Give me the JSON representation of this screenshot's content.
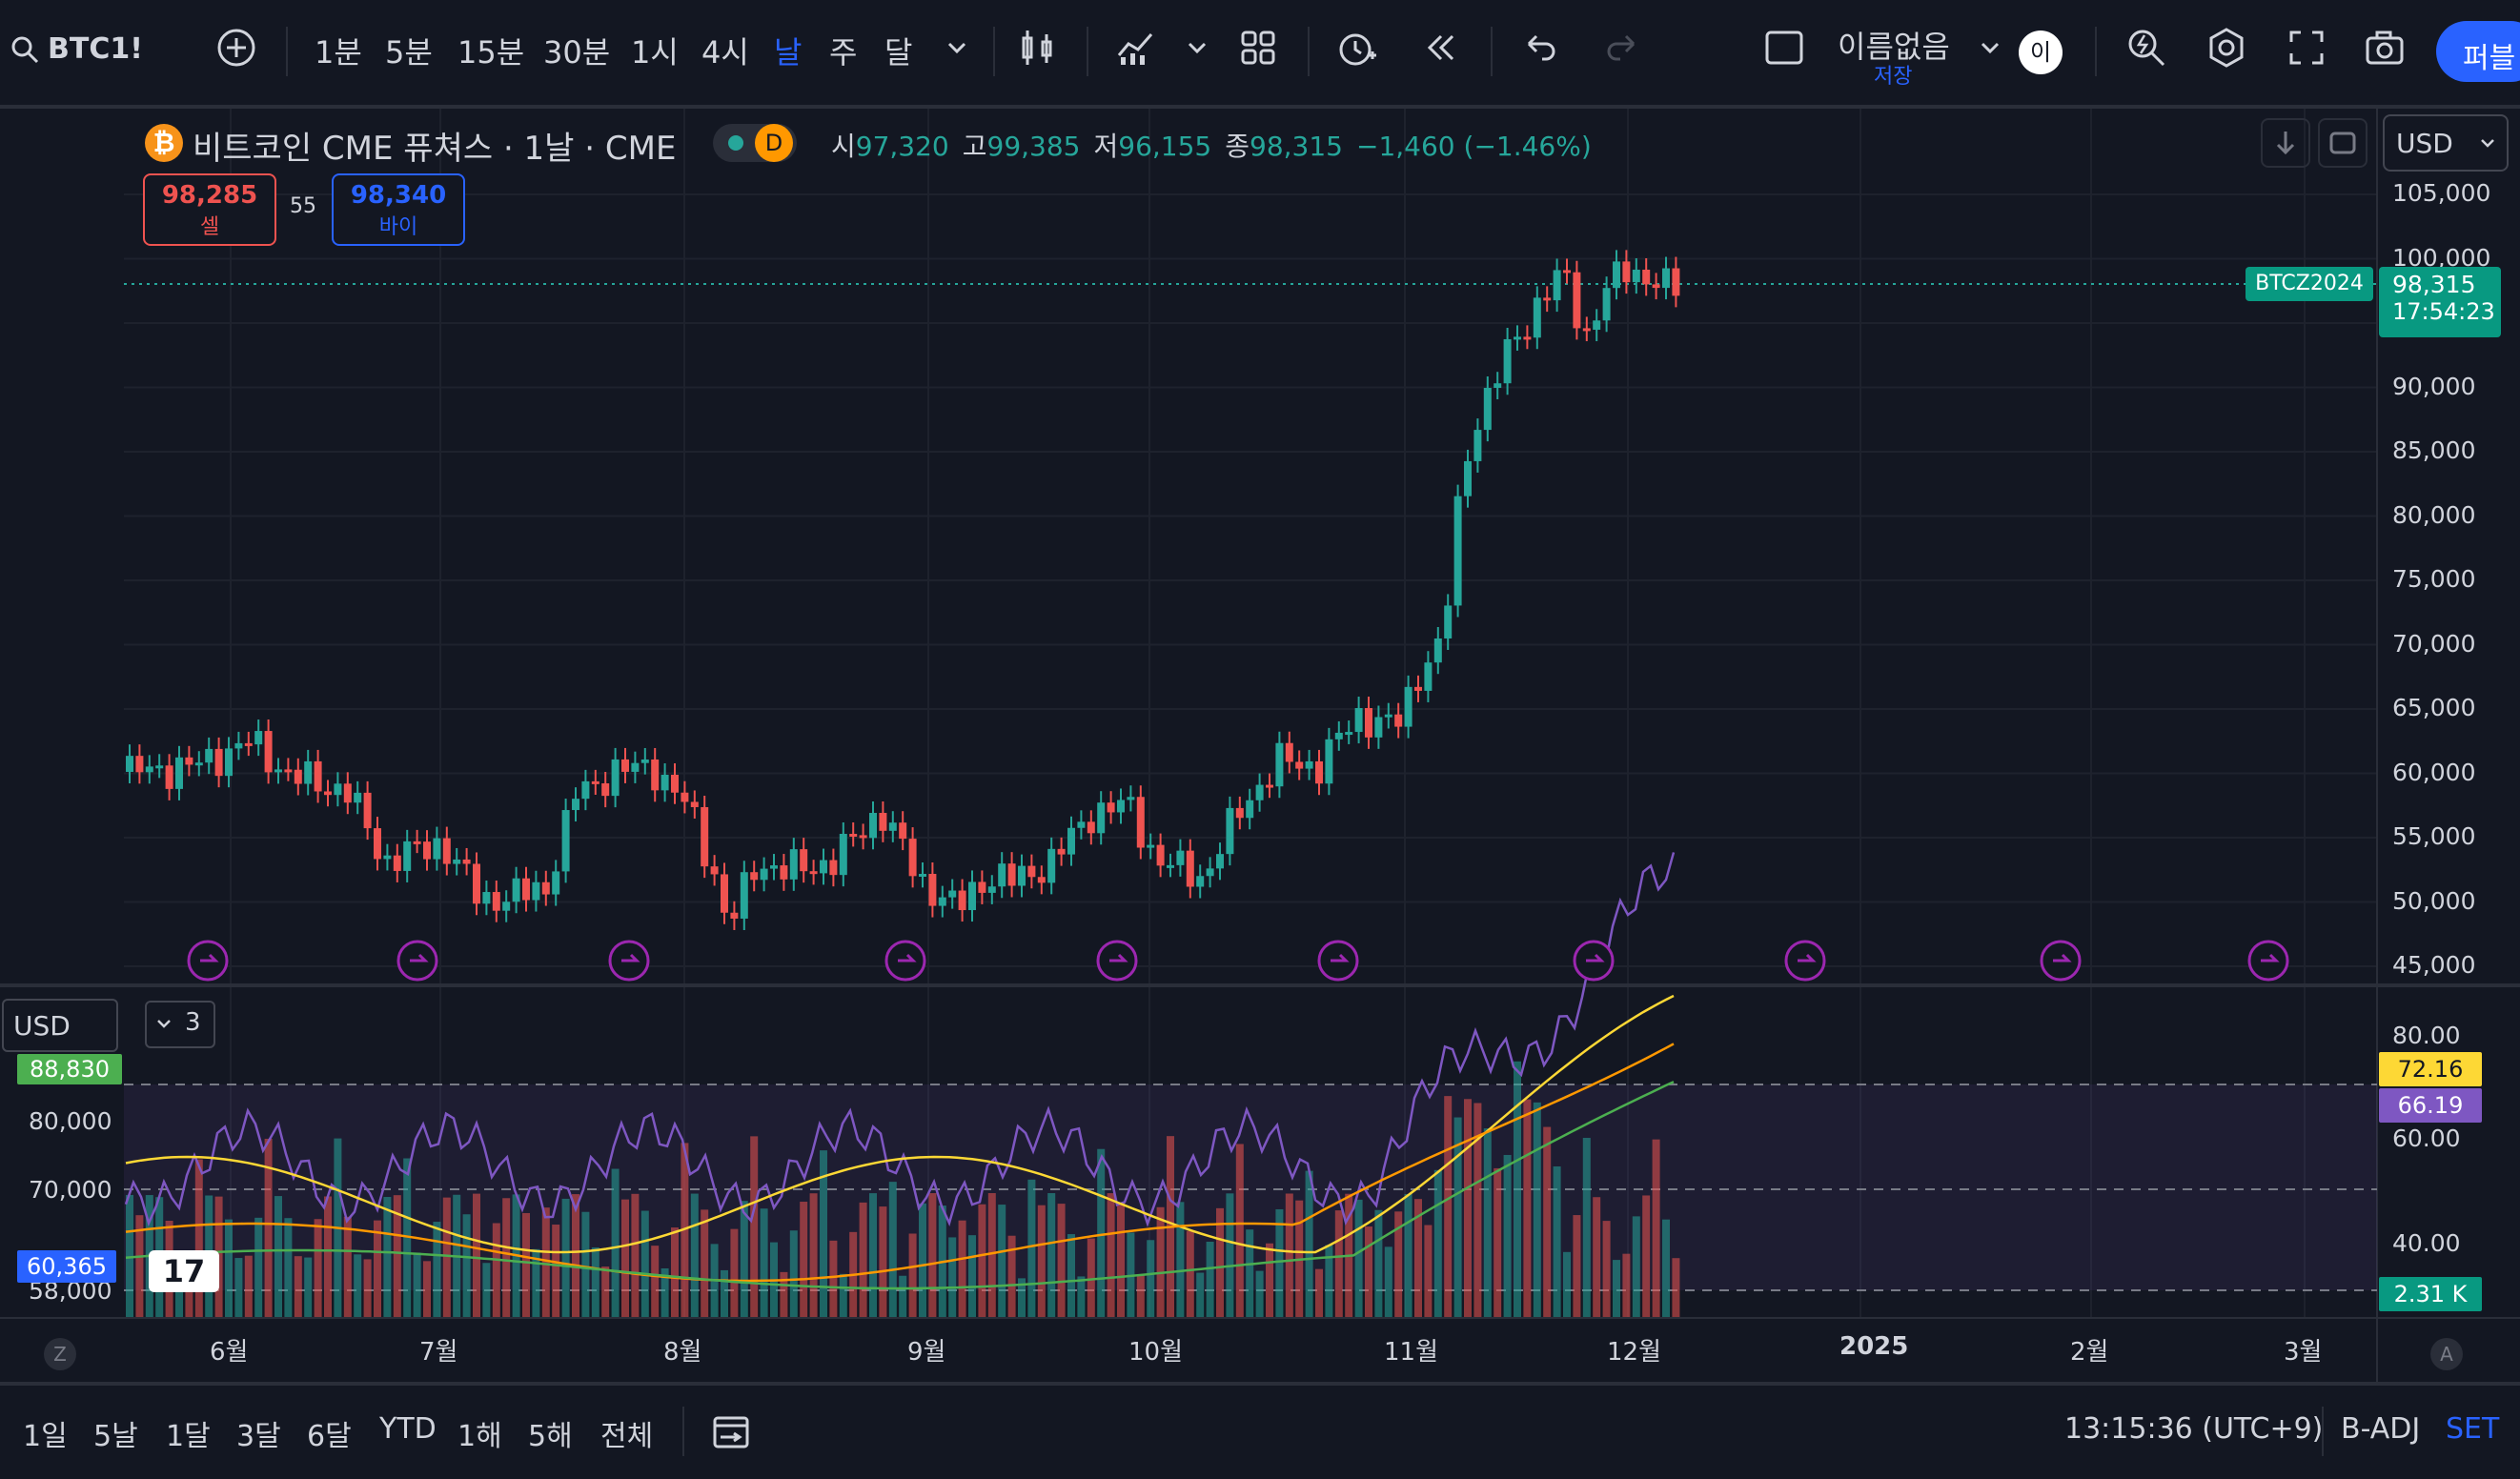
{
  "toolbar": {
    "symbol": "BTC1!",
    "timeframes": [
      "1분",
      "5분",
      "15분",
      "30분",
      "1시",
      "4시",
      "날",
      "주",
      "달"
    ],
    "active_timeframe": "날",
    "layout_name": "이름없음",
    "layout_status": "저장",
    "avatar_letter": "이",
    "publish_label": "퍼블"
  },
  "legend": {
    "title": "비트코인 CME 퓨쳐스 · 1날 · CME",
    "badge": "D",
    "open_label": "시",
    "open": "97,320",
    "high_label": "고",
    "high": "99,385",
    "low_label": "저",
    "low": "96,155",
    "close_label": "종",
    "close": "98,315",
    "change": "−1,460 (−1.46%)",
    "sell_price": "98,285",
    "sell_label": "셀",
    "spread": "55",
    "buy_price": "98,340",
    "buy_label": "바이",
    "currency": "USD"
  },
  "price_axis": {
    "labels": [
      "105,000",
      "100,000",
      "95,000",
      "90,000",
      "85,000",
      "80,000",
      "75,000",
      "70,000",
      "65,000",
      "60,000",
      "55,000",
      "50,000",
      "45,000"
    ],
    "contract_tag": "BTCZ2024",
    "last_price": "98,315",
    "countdown": "17:54:23"
  },
  "indicator": {
    "currency": "USD",
    "collapse_count": "3",
    "right_labels": [
      "80.00",
      "60.00",
      "40.00"
    ],
    "rsi_value": "72.16",
    "ma_value": "66.19",
    "volume_value": "2.31 K",
    "left_labels": [
      "88,830",
      "80,000",
      "70,000",
      "60,365",
      "58,000"
    ]
  },
  "time_axis": {
    "labels": [
      "6월",
      "7월",
      "8월",
      "9월",
      "10월",
      "11월",
      "12월",
      "2025",
      "2월",
      "3월"
    ]
  },
  "bottombar": {
    "ranges": [
      "1일",
      "5날",
      "1달",
      "3달",
      "6달",
      "YTD",
      "1해",
      "5해",
      "전체"
    ],
    "clock": "13:15:36 (UTC+9)",
    "adj": "B-ADJ",
    "session": "SET"
  },
  "colors": {
    "up": "#26a69a",
    "down": "#ef5350",
    "accent": "#2962ff",
    "rsi_line": "#7e57c2",
    "ma_yellow": "#fdd835",
    "ma_orange": "#ff9800",
    "ma_green": "#4caf50"
  }
}
